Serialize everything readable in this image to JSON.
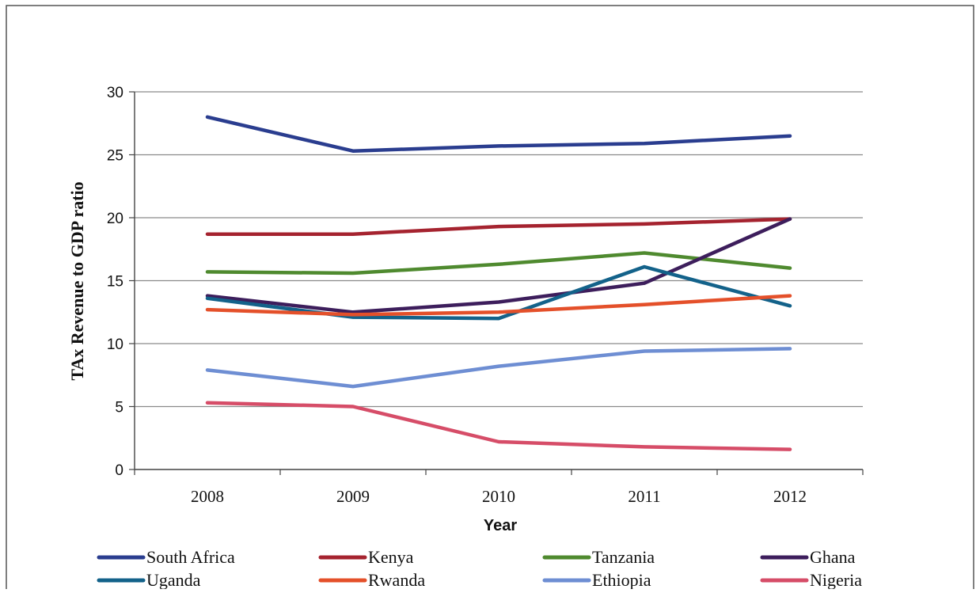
{
  "chart_data": {
    "type": "line",
    "title": "",
    "xlabel": "Year",
    "ylabel": "TAx Revenue to GDP ratio",
    "x": [
      "2008",
      "2009",
      "2010",
      "2011",
      "2012"
    ],
    "ylim": [
      0,
      30
    ],
    "yticks": [
      0,
      5,
      10,
      15,
      20,
      25,
      30
    ],
    "grid": true,
    "legend_position": "bottom",
    "series": [
      {
        "name": "South Africa",
        "color": "#2a3d8f",
        "values": [
          28.0,
          25.3,
          25.7,
          25.9,
          26.5
        ]
      },
      {
        "name": "Kenya",
        "color": "#a5232f",
        "values": [
          18.7,
          18.7,
          19.3,
          19.5,
          19.9
        ]
      },
      {
        "name": "Tanzania",
        "color": "#4f8a2f",
        "values": [
          15.7,
          15.6,
          16.3,
          17.2,
          16.0
        ]
      },
      {
        "name": "Ghana",
        "color": "#3d1e5c",
        "values": [
          13.8,
          12.5,
          13.3,
          14.8,
          19.9
        ]
      },
      {
        "name": "Uganda",
        "color": "#13628a",
        "values": [
          13.6,
          12.1,
          12.0,
          16.1,
          13.0
        ]
      },
      {
        "name": "Rwanda",
        "color": "#e4502a",
        "values": [
          12.7,
          12.3,
          12.5,
          13.1,
          13.8
        ]
      },
      {
        "name": "Ethiopia",
        "color": "#6e8ed3",
        "values": [
          7.9,
          6.6,
          8.2,
          9.4,
          9.6
        ]
      },
      {
        "name": "Nigeria",
        "color": "#d64d68",
        "values": [
          5.3,
          5.0,
          2.2,
          1.8,
          1.6
        ]
      }
    ]
  }
}
